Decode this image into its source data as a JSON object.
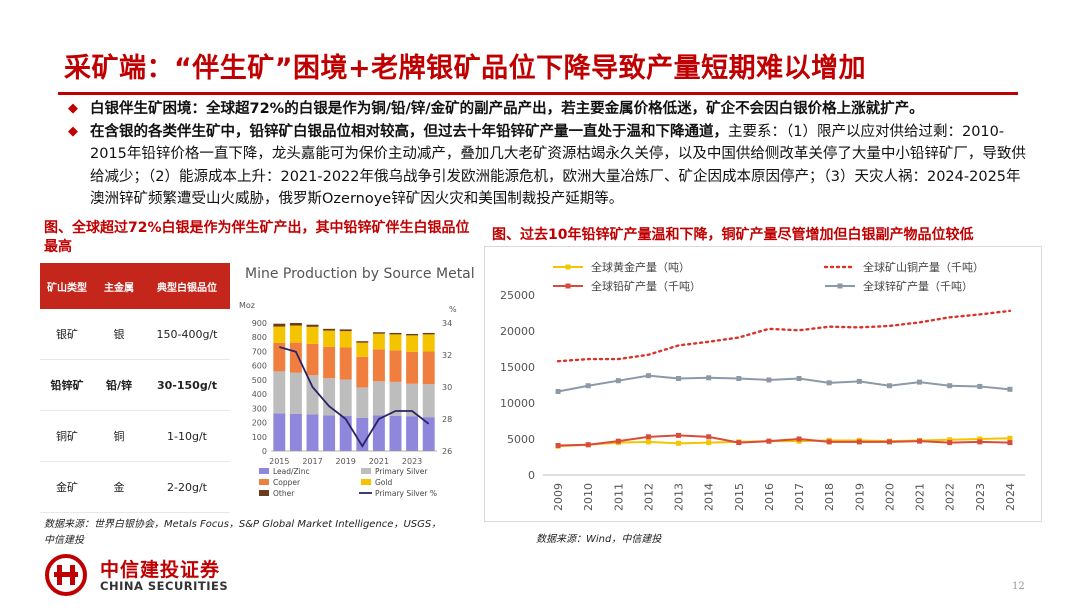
{
  "title": "采矿端：“伴生矿”困境+老牌银矿品位下降导致产量短期难以增加",
  "bullets": [
    {
      "bold": "白银伴生矿困境：全球超72%的白银是作为铜/铅/锌/金矿的副产品产出，若主要金属价格低迷，矿企不会因白银价格上涨就扩产。",
      "rest": ""
    },
    {
      "bold": "在含银的各类伴生矿中，铅锌矿白银品位相对较高，但过去十年铅锌矿产量一直处于温和下降通道，",
      "rest": "主要系：（1）限产以应对供给过剩：2010-2015年铅锌价格一直下降，龙头嘉能可为保价主动减产，叠加几大老矿资源枯竭永久关停，以及中国供给侧改革关停了大量中小铅锌矿厂，导致供给减少；（2）能源成本上升：2021-2022年俄乌战争引发欧洲能源危机，欧洲大量冶炼厂、矿企因成本原因停产；（3）天灾人祸：2024-2025年澳洲锌矿频繁遭受山火威胁，俄罗斯Ozernoye锌矿因火灾和美国制裁投产延期等。"
    }
  ],
  "left_caption": "图、全球超过72%白银是作为伴生矿产出，其中铅锌矿伴生白银品位最高",
  "right_caption": "图、过去10年铅锌矿产量温和下降，铜矿产量尽管增加但白银副产物品位较低",
  "table": {
    "headers": [
      "矿山类型",
      "主金属",
      "典型白银品位"
    ],
    "rows": [
      [
        "银矿",
        "银",
        "150-400g/t"
      ],
      [
        "铅锌矿",
        "铅/锌",
        "30-150g/t"
      ],
      [
        "铜矿",
        "铜",
        "1-10g/t"
      ],
      [
        "金矿",
        "金",
        "2-20g/t"
      ]
    ]
  },
  "source_left": "数据来源：世界白银协会，Metals Focus，S&P Global Market Intelligence，USGS，中信建投",
  "source_right": "数据来源：Wind，中信建投",
  "logo": {
    "cn": "中信建投证券",
    "en": "CHINA SECURITIES"
  },
  "page_number": "12",
  "colors": {
    "accent": "#c00000",
    "gold": "#f5c400",
    "copper": "#d9342b",
    "lead": "#d94c3d",
    "zinc": "#8c99a6"
  },
  "chart_data": [
    {
      "type": "bar",
      "title": "Mine Production by Source Metal",
      "stacked": true,
      "left_unit": "Moz",
      "right_unit": "%",
      "categories": [
        "2015",
        "2016",
        "2017",
        "2018",
        "2019",
        "2020",
        "2021",
        "2022",
        "2023",
        "2024"
      ],
      "x_tick_labels": [
        "2015",
        "2017",
        "2019",
        "2021",
        "2023"
      ],
      "ylim_left": [
        0,
        900
      ],
      "left_ticks": [
        "0",
        "100",
        "200",
        "300",
        "400",
        "500",
        "600",
        "700",
        "800",
        "900"
      ],
      "ylim_right": [
        26,
        34
      ],
      "right_ticks": [
        "26",
        "28",
        "30",
        "32",
        "34"
      ],
      "series": [
        {
          "name": "Lead/Zinc",
          "color": "#8f87dc",
          "values": [
            265,
            262,
            258,
            250,
            248,
            232,
            250,
            248,
            245,
            238
          ]
        },
        {
          "name": "Primary Silver",
          "color": "#bdbdbd",
          "values": [
            295,
            290,
            275,
            262,
            255,
            215,
            240,
            238,
            228,
            232
          ]
        },
        {
          "name": "Copper",
          "color": "#f07e3e",
          "values": [
            200,
            210,
            220,
            220,
            225,
            215,
            225,
            222,
            225,
            230
          ]
        },
        {
          "name": "Gold",
          "color": "#f5c400",
          "values": [
            115,
            120,
            120,
            115,
            115,
            100,
            110,
            112,
            115,
            120
          ]
        },
        {
          "name": "Other",
          "color": "#6b3a1f",
          "values": [
            20,
            18,
            15,
            12,
            12,
            10,
            10,
            10,
            10,
            10
          ]
        }
      ],
      "line_series": {
        "name": "Primary Silver %",
        "color": "#2a2466",
        "values": [
          32.5,
          32.2,
          30.0,
          28.8,
          28.0,
          26.3,
          28.0,
          28.5,
          28.5,
          27.7
        ]
      },
      "legend": [
        "Lead/Zinc",
        "Primary Silver",
        "Copper",
        "Gold",
        "Other",
        "Primary Silver %"
      ]
    },
    {
      "type": "line",
      "categories": [
        "2009",
        "2010",
        "2011",
        "2012",
        "2013",
        "2014",
        "2015",
        "2016",
        "2017",
        "2018",
        "2019",
        "2020",
        "2021",
        "2022",
        "2023",
        "2024"
      ],
      "ylim": [
        0,
        25000
      ],
      "yticks": [
        "0",
        "5000",
        "10000",
        "15000",
        "20000",
        "25000"
      ],
      "series": [
        {
          "name": "全球黄金产量（吨）",
          "color": "#f5c400",
          "dashed": false,
          "values": [
            4000,
            4200,
            4500,
            4600,
            4400,
            4500,
            4600,
            4700,
            4700,
            4800,
            4800,
            4700,
            4800,
            4900,
            5000,
            5100
          ]
        },
        {
          "name": "全球矿山铜产量（千吨）",
          "color": "#d9342b",
          "dashed": true,
          "values": [
            15800,
            16100,
            16100,
            16700,
            18000,
            18500,
            19100,
            20300,
            20100,
            20600,
            20500,
            20700,
            21200,
            21900,
            22300,
            22800
          ]
        },
        {
          "name": "全球铅矿产量（千吨）",
          "color": "#d94c3d",
          "dashed": false,
          "values": [
            4100,
            4200,
            4700,
            5300,
            5500,
            5300,
            4500,
            4700,
            5000,
            4600,
            4600,
            4600,
            4700,
            4500,
            4600,
            4500
          ]
        },
        {
          "name": "全球锌矿产量（千吨）",
          "color": "#8c99a6",
          "dashed": false,
          "values": [
            11600,
            12400,
            13100,
            13800,
            13400,
            13500,
            13400,
            13200,
            13400,
            12800,
            13000,
            12400,
            12900,
            12400,
            12300,
            11900
          ]
        }
      ]
    }
  ]
}
